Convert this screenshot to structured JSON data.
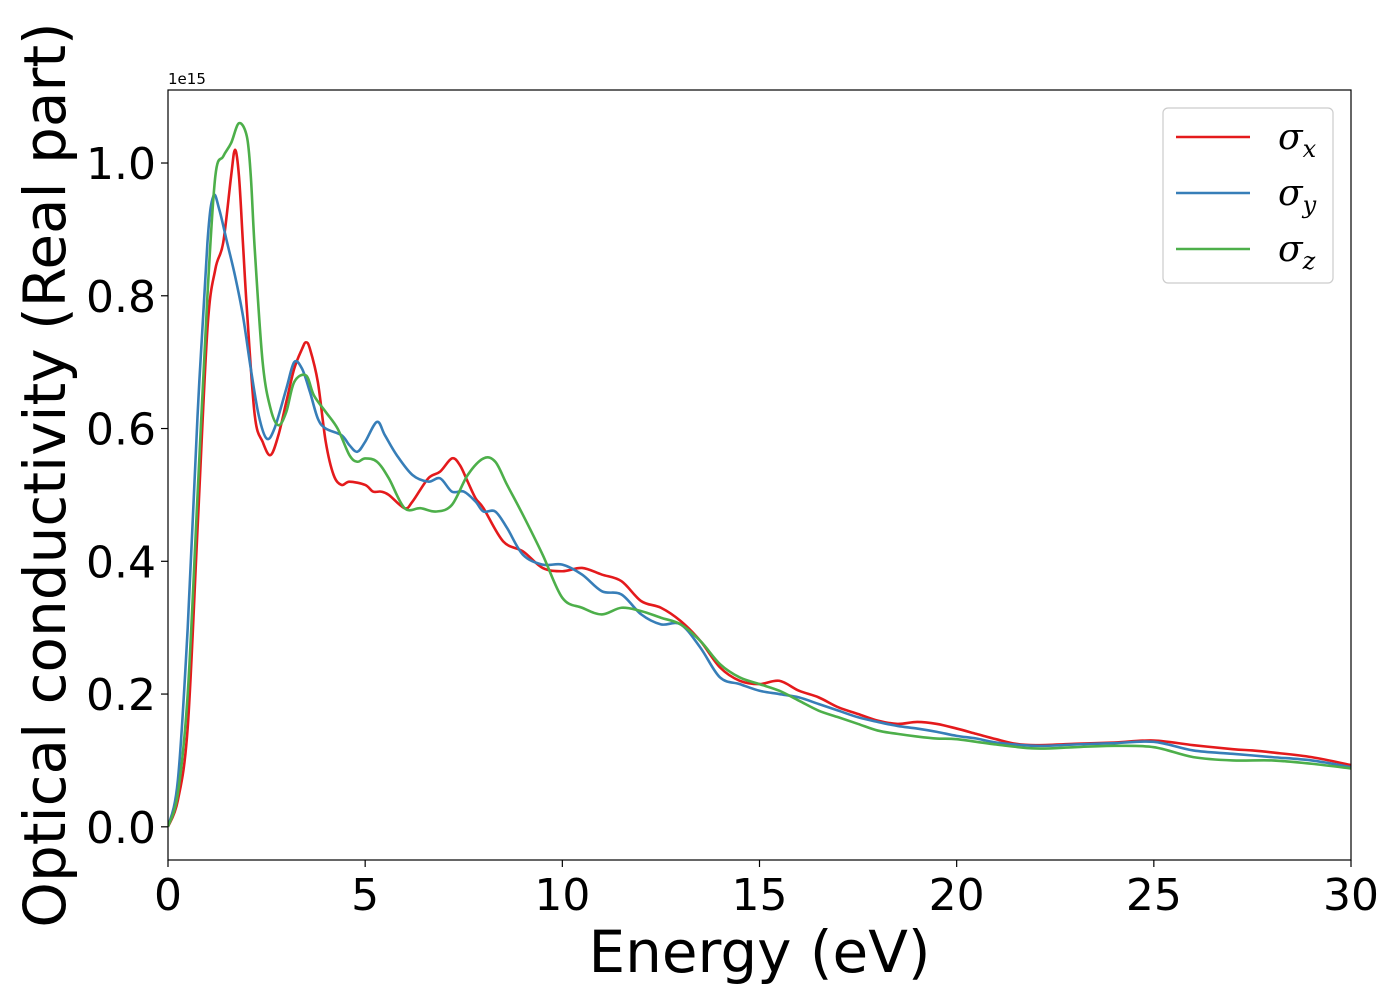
{
  "chart_data": {
    "type": "line",
    "title": "",
    "xlabel": "Energy (eV)",
    "ylabel": "Optical conductivity (Real part)",
    "y_offset_label": "1e15",
    "xlim": [
      0,
      30
    ],
    "ylim": [
      -0.05,
      1.11
    ],
    "xticks": [
      0,
      5,
      10,
      15,
      20,
      25,
      30
    ],
    "xtick_labels": [
      "0",
      "5",
      "10",
      "15",
      "20",
      "25",
      "30"
    ],
    "yticks": [
      0.0,
      0.2,
      0.4,
      0.6,
      0.8,
      1.0
    ],
    "ytick_labels": [
      "0.0",
      "0.2",
      "0.4",
      "0.6",
      "0.8",
      "1.0"
    ],
    "grid": false,
    "legend_position": "top-right",
    "series": [
      {
        "name": "σx",
        "symbol": "σ",
        "subscript": "x",
        "color": "#e41a1c",
        "x": [
          0,
          0.25,
          0.5,
          0.75,
          1.0,
          1.2,
          1.4,
          1.6,
          1.7,
          1.8,
          1.9,
          2.0,
          2.2,
          2.4,
          2.6,
          2.8,
          3.0,
          3.2,
          3.4,
          3.5,
          3.6,
          3.8,
          4.0,
          4.2,
          4.4,
          4.6,
          5.0,
          5.2,
          5.4,
          5.6,
          6.0,
          6.2,
          6.6,
          6.9,
          7.2,
          7.4,
          7.6,
          7.8,
          8.0,
          8.5,
          9.0,
          9.5,
          10.0,
          10.5,
          11.0,
          11.5,
          12.0,
          12.5,
          13.0,
          13.5,
          14.0,
          14.5,
          15.0,
          15.5,
          16.0,
          16.5,
          17.0,
          17.5,
          18.0,
          18.5,
          19.0,
          19.5,
          20.0,
          20.5,
          21.0,
          21.5,
          22.0,
          23.0,
          24.0,
          25.0,
          26.0,
          27.0,
          27.5,
          28.0,
          29.0,
          30.0
        ],
        "y": [
          0.0,
          0.04,
          0.15,
          0.45,
          0.75,
          0.84,
          0.88,
          0.98,
          1.02,
          0.98,
          0.88,
          0.78,
          0.62,
          0.58,
          0.56,
          0.59,
          0.64,
          0.69,
          0.72,
          0.73,
          0.72,
          0.67,
          0.58,
          0.53,
          0.515,
          0.52,
          0.515,
          0.505,
          0.505,
          0.5,
          0.48,
          0.49,
          0.525,
          0.535,
          0.555,
          0.545,
          0.52,
          0.495,
          0.48,
          0.43,
          0.415,
          0.39,
          0.385,
          0.39,
          0.38,
          0.37,
          0.34,
          0.33,
          0.31,
          0.28,
          0.24,
          0.22,
          0.215,
          0.22,
          0.205,
          0.195,
          0.18,
          0.17,
          0.16,
          0.155,
          0.158,
          0.155,
          0.148,
          0.14,
          0.132,
          0.125,
          0.123,
          0.125,
          0.127,
          0.13,
          0.123,
          0.117,
          0.115,
          0.112,
          0.105,
          0.093
        ]
      },
      {
        "name": "σy",
        "symbol": "σ",
        "subscript": "y",
        "color": "#377eb8",
        "x": [
          0,
          0.25,
          0.5,
          0.75,
          1.0,
          1.15,
          1.3,
          1.5,
          1.7,
          1.9,
          2.1,
          2.3,
          2.5,
          2.7,
          3.0,
          3.2,
          3.4,
          3.6,
          3.8,
          4.0,
          4.4,
          4.6,
          4.8,
          5.0,
          5.3,
          5.5,
          5.8,
          6.2,
          6.6,
          6.9,
          7.2,
          7.5,
          7.8,
          8.0,
          8.3,
          8.6,
          9.0,
          9.5,
          10.0,
          10.5,
          11.0,
          11.5,
          12.0,
          12.5,
          13.0,
          13.5,
          14.0,
          14.5,
          15.0,
          15.5,
          16.0,
          16.5,
          17.0,
          17.5,
          18.0,
          18.5,
          19.0,
          19.5,
          20.0,
          20.5,
          21.0,
          22.0,
          23.0,
          24.0,
          25.0,
          26.0,
          27.0,
          28.0,
          29.0,
          30.0
        ],
        "y": [
          0.0,
          0.07,
          0.3,
          0.62,
          0.88,
          0.95,
          0.93,
          0.88,
          0.83,
          0.77,
          0.69,
          0.62,
          0.585,
          0.6,
          0.66,
          0.7,
          0.69,
          0.655,
          0.615,
          0.6,
          0.59,
          0.575,
          0.565,
          0.58,
          0.61,
          0.59,
          0.56,
          0.53,
          0.52,
          0.525,
          0.505,
          0.505,
          0.49,
          0.475,
          0.475,
          0.45,
          0.41,
          0.395,
          0.395,
          0.38,
          0.355,
          0.35,
          0.32,
          0.305,
          0.305,
          0.27,
          0.225,
          0.215,
          0.205,
          0.2,
          0.195,
          0.185,
          0.175,
          0.165,
          0.158,
          0.152,
          0.148,
          0.143,
          0.137,
          0.133,
          0.127,
          0.122,
          0.124,
          0.126,
          0.128,
          0.115,
          0.11,
          0.105,
          0.1,
          0.09
        ]
      },
      {
        "name": "σz",
        "symbol": "σ",
        "subscript": "z",
        "color": "#4daf4a",
        "x": [
          0,
          0.25,
          0.5,
          0.75,
          1.0,
          1.2,
          1.4,
          1.6,
          1.8,
          2.0,
          2.1,
          2.2,
          2.4,
          2.6,
          2.8,
          3.0,
          3.2,
          3.5,
          3.7,
          4.0,
          4.3,
          4.6,
          4.8,
          5.0,
          5.3,
          5.6,
          6.0,
          6.4,
          6.8,
          7.2,
          7.6,
          8.0,
          8.3,
          8.6,
          9.0,
          9.5,
          10.0,
          10.5,
          11.0,
          11.5,
          12.0,
          12.5,
          13.0,
          13.5,
          14.0,
          14.5,
          15.0,
          15.5,
          16.0,
          16.5,
          17.0,
          17.5,
          18.0,
          18.5,
          19.0,
          19.5,
          20.0,
          21.0,
          22.0,
          23.0,
          24.0,
          25.0,
          26.0,
          27.0,
          28.0,
          29.0,
          30.0
        ],
        "y": [
          0.0,
          0.05,
          0.2,
          0.5,
          0.8,
          0.98,
          1.01,
          1.03,
          1.06,
          1.04,
          0.98,
          0.87,
          0.7,
          0.63,
          0.605,
          0.625,
          0.67,
          0.68,
          0.65,
          0.625,
          0.6,
          0.56,
          0.55,
          0.555,
          0.55,
          0.525,
          0.48,
          0.48,
          0.475,
          0.485,
          0.53,
          0.555,
          0.55,
          0.515,
          0.47,
          0.41,
          0.345,
          0.33,
          0.32,
          0.33,
          0.325,
          0.315,
          0.305,
          0.28,
          0.245,
          0.225,
          0.215,
          0.205,
          0.19,
          0.175,
          0.165,
          0.155,
          0.145,
          0.14,
          0.136,
          0.133,
          0.132,
          0.124,
          0.118,
          0.12,
          0.122,
          0.12,
          0.105,
          0.1,
          0.1,
          0.095,
          0.088
        ]
      }
    ]
  }
}
